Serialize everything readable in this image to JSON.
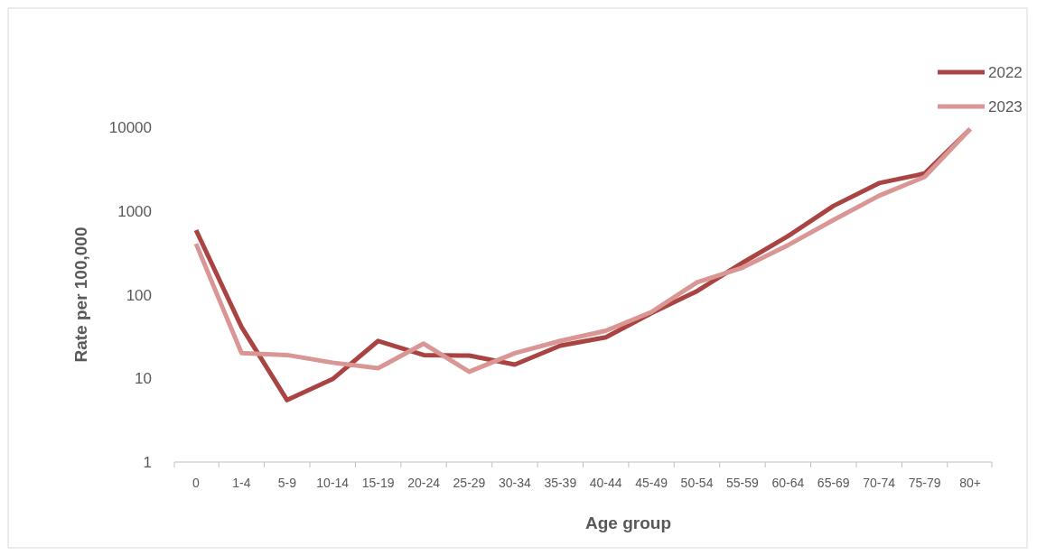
{
  "chart_data": {
    "type": "line",
    "xlabel": "Age group",
    "ylabel": "Rate per 100,000",
    "log": "y",
    "ylim": [
      1,
      10000
    ],
    "yticks": [
      1,
      10,
      100,
      1000,
      10000
    ],
    "grid": false,
    "legend": "top right",
    "marker": "none",
    "line_style": "solid",
    "categories": [
      "0",
      "1-4",
      "5-9",
      "10-14",
      "15-19",
      "20-24",
      "25-29",
      "30-34",
      "35-39",
      "40-44",
      "45-49",
      "50-54",
      "55-59",
      "60-64",
      "65-69",
      "70-74",
      "75-79",
      "80+"
    ],
    "series": [
      {
        "name": "2022",
        "color": "#a94442",
        "values": [
          590,
          41,
          5.5,
          9.8,
          28,
          19,
          18.7,
          14.6,
          24.6,
          31,
          60,
          110,
          240,
          500,
          1150,
          2150,
          2800,
          9500
        ]
      },
      {
        "name": "2023",
        "color": "#d99694",
        "values": [
          405,
          20,
          19,
          15.4,
          13.2,
          26,
          12,
          20,
          28,
          37,
          62,
          140,
          210,
          390,
          780,
          1520,
          2550,
          9500
        ]
      }
    ]
  }
}
